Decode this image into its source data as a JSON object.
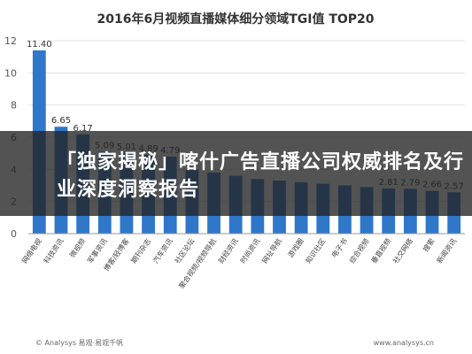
{
  "chart_data": {
    "type": "bar",
    "title": "2016年6月视频直播媒体细分领域TGI值  TOP20",
    "categories": [
      "网络电视",
      "科技资讯",
      "微视频",
      "军事资讯",
      "博客/轻博客",
      "期刊杂志",
      "汽车资讯",
      "社区论坛",
      "聚合视频/视频导航",
      "财经资讯",
      "时尚资讯",
      "网址导航",
      "游戏圈",
      "知识社区",
      "电子书",
      "综合视频",
      "垂直视频",
      "社交网络",
      "搜索",
      "新闻资讯"
    ],
    "values": [
      11.4,
      6.65,
      6.17,
      5.09,
      5.01,
      4.89,
      4.79,
      4.0,
      3.8,
      3.6,
      3.4,
      3.3,
      3.2,
      3.1,
      3.0,
      2.9,
      2.81,
      2.79,
      2.66,
      2.57
    ],
    "data_labels": [
      "11.40",
      "6.65",
      "6.17",
      "5.09",
      "5.01",
      "4.89",
      "4.79",
      "",
      "",
      "",
      "",
      "",
      "",
      "",
      "",
      "",
      "2.81",
      "2.79",
      "2.66",
      "2.57"
    ],
    "ylim": [
      0,
      12
    ],
    "yticks": [
      "0",
      "2",
      "4",
      "6",
      "8",
      "10",
      "12"
    ],
    "grid": true,
    "colors": {
      "bar": "#2f77c9",
      "grid": "#e3e3e3",
      "axis": "#999999"
    }
  },
  "footer": {
    "left": "© Analysys 易观·易观千帆",
    "right": "www.analysys.cn"
  },
  "overlay": {
    "text": "「独家揭秘」喀什广告直播公司权威排名及行业深度洞察报告"
  }
}
